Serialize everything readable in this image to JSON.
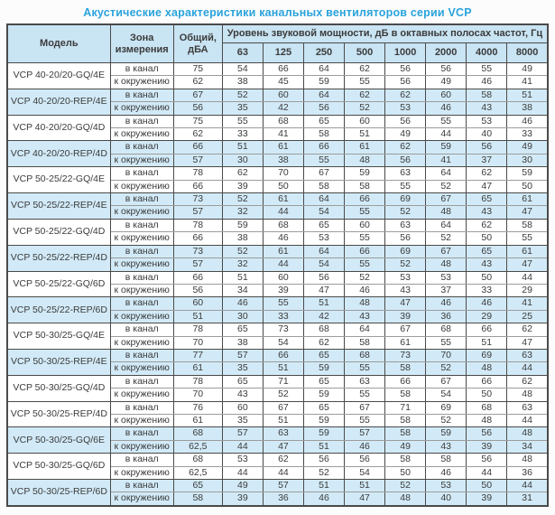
{
  "title": "Акустические характеристики канальных вентиляторов  серии VCP",
  "colors": {
    "title_text": "#29a3dc",
    "header_bg": "#c9e4f3",
    "shaded_row_bg": "#d2eaf7",
    "border": "#4a4a4a"
  },
  "table": {
    "headers": {
      "model": "Модель",
      "zone": "Зона измерения",
      "total": "Общий, дБА",
      "spl": "Уровень звуковой мощности, дБ в октавных полосах частот, Гц",
      "frequencies": [
        "63",
        "125",
        "250",
        "500",
        "1000",
        "2000",
        "4000",
        "8000"
      ]
    },
    "zone_labels": {
      "duct": "в канал",
      "ambient": "к окружению"
    },
    "groups": [
      {
        "model": "VCP 40-20/20-GQ/4E",
        "shaded": false,
        "rows": [
          {
            "zone": "в канал",
            "total": "75",
            "values": [
              54,
              66,
              64,
              62,
              56,
              56,
              55,
              49
            ]
          },
          {
            "zone": "к окружению",
            "total": "62",
            "values": [
              38,
              45,
              59,
              55,
              56,
              49,
              46,
              41
            ]
          }
        ]
      },
      {
        "model": "VCP 40-20/20-REP/4E",
        "shaded": true,
        "rows": [
          {
            "zone": "в канал",
            "total": "67",
            "values": [
              52,
              60,
              64,
              62,
              62,
              60,
              58,
              51
            ]
          },
          {
            "zone": "к окружению",
            "total": "56",
            "values": [
              35,
              42,
              56,
              52,
              53,
              46,
              43,
              38
            ]
          }
        ]
      },
      {
        "model": "VCP 40-20/20-GQ/4D",
        "shaded": false,
        "rows": [
          {
            "zone": "в канал",
            "total": "75",
            "values": [
              55,
              68,
              65,
              60,
              56,
              55,
              53,
              46
            ]
          },
          {
            "zone": "к окружению",
            "total": "62",
            "values": [
              33,
              41,
              58,
              51,
              49,
              44,
              40,
              33
            ]
          }
        ]
      },
      {
        "model": "VCP 40-20/20-REP/4D",
        "shaded": true,
        "rows": [
          {
            "zone": "в канал",
            "total": "66",
            "values": [
              51,
              61,
              66,
              61,
              62,
              59,
              56,
              49
            ]
          },
          {
            "zone": "к окружению",
            "total": "57",
            "values": [
              30,
              38,
              55,
              48,
              56,
              41,
              37,
              30
            ]
          }
        ]
      },
      {
        "model": "VCP 50-25/22-GQ/4E",
        "shaded": false,
        "rows": [
          {
            "zone": "в канал",
            "total": "78",
            "values": [
              62,
              70,
              67,
              59,
              63,
              64,
              62,
              59
            ]
          },
          {
            "zone": "к окружению",
            "total": "66",
            "values": [
              39,
              50,
              58,
              58,
              55,
              52,
              47,
              50
            ]
          }
        ]
      },
      {
        "model": "VCP 50-25/22-REP/4E",
        "shaded": true,
        "rows": [
          {
            "zone": "в канал",
            "total": "73",
            "values": [
              52,
              61,
              64,
              66,
              69,
              67,
              65,
              61
            ]
          },
          {
            "zone": "к окружению",
            "total": "57",
            "values": [
              32,
              44,
              54,
              55,
              52,
              48,
              43,
              47
            ]
          }
        ]
      },
      {
        "model": "VCP 50-25/22-GQ/4D",
        "shaded": false,
        "rows": [
          {
            "zone": "в канал",
            "total": "78",
            "values": [
              59,
              68,
              65,
              60,
              63,
              64,
              62,
              58
            ]
          },
          {
            "zone": "к окружению",
            "total": "66",
            "values": [
              38,
              46,
              53,
              55,
              56,
              52,
              50,
              55
            ]
          }
        ]
      },
      {
        "model": "VCP 50-25/22-REP/4D",
        "shaded": true,
        "rows": [
          {
            "zone": "в канал",
            "total": "73",
            "values": [
              52,
              61,
              64,
              66,
              69,
              67,
              65,
              61
            ]
          },
          {
            "zone": "к окружению",
            "total": "57",
            "values": [
              32,
              44,
              54,
              55,
              52,
              48,
              43,
              47
            ]
          }
        ]
      },
      {
        "model": "VCP 50-25/22-GQ/6D",
        "shaded": false,
        "rows": [
          {
            "zone": "в канал",
            "total": "66",
            "values": [
              51,
              60,
              56,
              52,
              53,
              53,
              50,
              44
            ]
          },
          {
            "zone": "к окружению",
            "total": "56",
            "values": [
              34,
              39,
              47,
              46,
              43,
              37,
              33,
              29
            ]
          }
        ]
      },
      {
        "model": "VCP 50-25/22-REP/6D",
        "shaded": true,
        "rows": [
          {
            "zone": "в канал",
            "total": "60",
            "values": [
              46,
              55,
              51,
              48,
              47,
              46,
              46,
              41
            ]
          },
          {
            "zone": "к окружению",
            "total": "51",
            "values": [
              30,
              33,
              42,
              43,
              39,
              36,
              29,
              25
            ]
          }
        ]
      },
      {
        "model": "VCP 50-30/25-GQ/4E",
        "shaded": false,
        "rows": [
          {
            "zone": "в канал",
            "total": "78",
            "values": [
              65,
              73,
              68,
              64,
              67,
              68,
              66,
              62
            ]
          },
          {
            "zone": "к окружению",
            "total": "70",
            "values": [
              38,
              54,
              62,
              58,
              61,
              55,
              51,
              47
            ]
          }
        ]
      },
      {
        "model": "VCP 50-30/25-REP/4E",
        "shaded": true,
        "rows": [
          {
            "zone": "в канал",
            "total": "77",
            "values": [
              57,
              66,
              65,
              68,
              73,
              70,
              69,
              63
            ]
          },
          {
            "zone": "к окружению",
            "total": "61",
            "values": [
              35,
              51,
              59,
              55,
              58,
              52,
              48,
              44
            ]
          }
        ]
      },
      {
        "model": "VCP 50-30/25-GQ/4D",
        "shaded": false,
        "rows": [
          {
            "zone": "в канал",
            "total": "78",
            "values": [
              65,
              71,
              65,
              63,
              66,
              67,
              66,
              62
            ]
          },
          {
            "zone": "к окружению",
            "total": "70",
            "values": [
              43,
              52,
              59,
              55,
              58,
              54,
              50,
              48
            ]
          }
        ]
      },
      {
        "model": "VCP 50-30/25-REP/4D",
        "shaded": false,
        "rows": [
          {
            "zone": "в канал",
            "total": "76",
            "values": [
              60,
              67,
              65,
              67,
              71,
              69,
              68,
              63
            ]
          },
          {
            "zone": "к окружению",
            "total": "61",
            "values": [
              35,
              51,
              59,
              55,
              58,
              52,
              48,
              44
            ]
          }
        ]
      },
      {
        "model": "VCP 50-30/25-GQ/6E",
        "shaded": true,
        "rows": [
          {
            "zone": "в канал",
            "total": "68",
            "values": [
              57,
              63,
              59,
              57,
              58,
              59,
              56,
              48
            ]
          },
          {
            "zone": "к окружению",
            "total": "62,5",
            "values": [
              44,
              47,
              51,
              46,
              49,
              43,
              39,
              34
            ]
          }
        ]
      },
      {
        "model": "VCP 50-30/25-GQ/6D",
        "shaded": false,
        "rows": [
          {
            "zone": "в канал",
            "total": "68",
            "values": [
              53,
              62,
              56,
              56,
              58,
              58,
              56,
              48
            ]
          },
          {
            "zone": "к окружению",
            "total": "62,5",
            "values": [
              44,
              44,
              52,
              54,
              50,
              46,
              44,
              36
            ]
          }
        ]
      },
      {
        "model": "VCP 50-30/25-REP/6D",
        "shaded": true,
        "rows": [
          {
            "zone": "в канал",
            "total": "65",
            "values": [
              49,
              57,
              51,
              51,
              52,
              53,
              50,
              44
            ]
          },
          {
            "zone": "к окружению",
            "total": "58",
            "values": [
              39,
              36,
              46,
              47,
              48,
              40,
              39,
              31
            ]
          }
        ]
      }
    ]
  }
}
